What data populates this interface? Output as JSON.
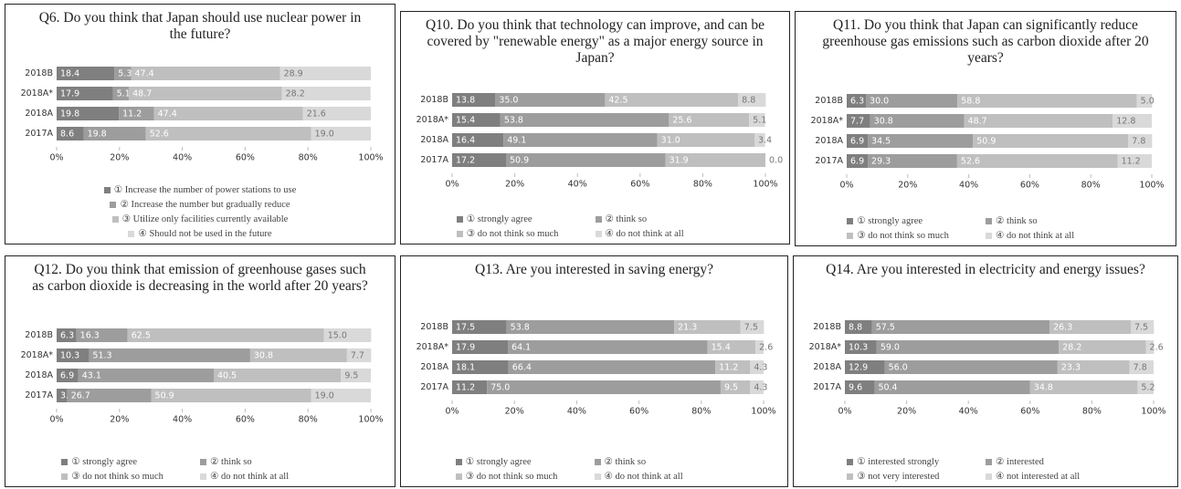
{
  "chart_data": [
    {
      "type": "bar",
      "orientation": "horizontal",
      "stacked": true,
      "title": "Q6.  Do you think that Japan should use nuclear power in the future?",
      "categories": [
        "2018B",
        "2018A*",
        "2018A",
        "2017A"
      ],
      "series": [
        {
          "name": "① Increase the number of power stations to use",
          "color": "#7f7f7f",
          "values": [
            18.4,
            17.9,
            19.8,
            8.6
          ],
          "value_labels": [
            "18.4",
            "17.9",
            "19.8",
            "8.6"
          ]
        },
        {
          "name": "② Increase the number but gradually reduce",
          "color": "#9d9d9d",
          "values": [
            5.3,
            5.1,
            11.2,
            19.8
          ],
          "value_labels": [
            "5.3",
            "5.1",
            "11.2",
            "19.8"
          ]
        },
        {
          "name": "③ Utilize only facilities currently available",
          "color": "#bfbfbf",
          "values": [
            47.4,
            48.7,
            47.4,
            52.6
          ],
          "value_labels": [
            "47.4",
            "48.7",
            "47.4",
            "52.6"
          ]
        },
        {
          "name": "④ Should not be used in the future",
          "color": "#d9d9d9",
          "values": [
            28.9,
            28.2,
            21.6,
            19.0
          ],
          "value_labels": [
            "28.9",
            "28.2",
            "21.6",
            "19.0"
          ]
        }
      ],
      "xlim": [
        0,
        100
      ],
      "xticks": [
        {
          "value": 0,
          "label": "0%"
        },
        {
          "value": 20,
          "label": "20%"
        },
        {
          "value": 40,
          "label": "40%"
        },
        {
          "value": 60,
          "label": "60%"
        },
        {
          "value": 80,
          "label": "80%"
        },
        {
          "value": 100,
          "label": "100%"
        }
      ]
    },
    {
      "type": "bar",
      "orientation": "horizontal",
      "stacked": true,
      "title": "Q10. Do you think that technology can improve, and can be covered by \"renewable energy\" as a major energy source in Japan?",
      "categories": [
        "2018B",
        "2018A*",
        "2018A",
        "2017A"
      ],
      "series": [
        {
          "name": "① strongly agree",
          "color": "#7f7f7f",
          "values": [
            13.8,
            15.4,
            16.4,
            17.2
          ],
          "value_labels": [
            "13.8",
            "15.4",
            "16.4",
            "17.2"
          ]
        },
        {
          "name": "② think so",
          "color": "#9d9d9d",
          "values": [
            35.0,
            53.8,
            49.1,
            50.9
          ],
          "value_labels": [
            "35.0",
            "53.8",
            "49.1",
            "50.9"
          ]
        },
        {
          "name": "③ do not think so much",
          "color": "#bfbfbf",
          "values": [
            42.5,
            25.6,
            31.0,
            31.9
          ],
          "value_labels": [
            "42.5",
            "25.6",
            "31.0",
            "31.9"
          ]
        },
        {
          "name": "④ do not think at all",
          "color": "#d9d9d9",
          "values": [
            8.8,
            5.1,
            3.4,
            0.0
          ],
          "value_labels": [
            "8.8",
            "5.1",
            "3.4",
            "0.0"
          ]
        }
      ],
      "xlim": [
        0,
        100
      ],
      "xticks": [
        {
          "value": 0,
          "label": "0%"
        },
        {
          "value": 20,
          "label": "20%"
        },
        {
          "value": 40,
          "label": "40%"
        },
        {
          "value": 60,
          "label": "60%"
        },
        {
          "value": 80,
          "label": "80%"
        },
        {
          "value": 100,
          "label": "100%"
        }
      ]
    },
    {
      "type": "bar",
      "orientation": "horizontal",
      "stacked": true,
      "title": "Q11. Do you think that Japan can significantly reduce greenhouse gas emissions such as carbon dioxide after 20 years?",
      "categories": [
        "2018B",
        "2018A*",
        "2018A",
        "2017A"
      ],
      "series": [
        {
          "name": "① strongly agree",
          "color": "#7f7f7f",
          "values": [
            6.3,
            7.7,
            6.9,
            6.9
          ],
          "value_labels": [
            "6.3",
            "7.7",
            "6.9",
            "6.9"
          ]
        },
        {
          "name": "② think so",
          "color": "#9d9d9d",
          "values": [
            30.0,
            30.8,
            34.5,
            29.3
          ],
          "value_labels": [
            "30.0",
            "30.8",
            "34.5",
            "29.3"
          ]
        },
        {
          "name": "③ do not think so much",
          "color": "#bfbfbf",
          "values": [
            58.8,
            48.7,
            50.9,
            52.6
          ],
          "value_labels": [
            "58.8",
            "48.7",
            "50.9",
            "52.6"
          ]
        },
        {
          "name": "④ do not think at all",
          "color": "#d9d9d9",
          "values": [
            5.0,
            12.8,
            7.8,
            11.2
          ],
          "value_labels": [
            "5.0",
            "12.8",
            "7.8",
            "11.2"
          ]
        }
      ],
      "xlim": [
        0,
        100
      ],
      "xticks": [
        {
          "value": 0,
          "label": "0%"
        },
        {
          "value": 20,
          "label": "20%"
        },
        {
          "value": 40,
          "label": "40%"
        },
        {
          "value": 60,
          "label": "60%"
        },
        {
          "value": 80,
          "label": "80%"
        },
        {
          "value": 100,
          "label": "100%"
        }
      ]
    },
    {
      "type": "bar",
      "orientation": "horizontal",
      "stacked": true,
      "title": "Q12. Do you think that emission of greenhouse gases such as carbon dioxide is decreasing in the world after 20 years?",
      "categories": [
        "2018B",
        "2018A*",
        "2018A",
        "2017A"
      ],
      "series": [
        {
          "name": "① strongly agree",
          "color": "#7f7f7f",
          "values": [
            6.3,
            10.3,
            6.9,
            3.4
          ],
          "value_labels": [
            "6.3",
            "10.3",
            "6.9",
            "3.4"
          ]
        },
        {
          "name": "② think so",
          "color": "#9d9d9d",
          "values": [
            16.3,
            51.3,
            43.1,
            26.7
          ],
          "value_labels": [
            "16.3",
            "51.3",
            "43.1",
            "26.7"
          ]
        },
        {
          "name": "③ do not think so much",
          "color": "#bfbfbf",
          "values": [
            62.5,
            30.8,
            40.5,
            50.9
          ],
          "value_labels": [
            "62.5",
            "30.8",
            "40.5",
            "50.9"
          ]
        },
        {
          "name": "④ do not think at all",
          "color": "#d9d9d9",
          "values": [
            15.0,
            7.7,
            9.5,
            19.0
          ],
          "value_labels": [
            "15.0",
            "7.7",
            "9.5",
            "19.0"
          ]
        }
      ],
      "xlim": [
        0,
        100
      ],
      "xticks": [
        {
          "value": 0,
          "label": "0%"
        },
        {
          "value": 20,
          "label": "20%"
        },
        {
          "value": 40,
          "label": "40%"
        },
        {
          "value": 60,
          "label": "60%"
        },
        {
          "value": 80,
          "label": "80%"
        },
        {
          "value": 100,
          "label": "100%"
        }
      ]
    },
    {
      "type": "bar",
      "orientation": "horizontal",
      "stacked": true,
      "title": "Q13. Are you interested in saving energy?",
      "categories": [
        "2018B",
        "2018A*",
        "2018A",
        "2017A"
      ],
      "series": [
        {
          "name": "① strongly agree",
          "color": "#7f7f7f",
          "values": [
            17.5,
            17.9,
            18.1,
            11.2
          ],
          "value_labels": [
            "17.5",
            "17.9",
            "18.1",
            "11.2"
          ]
        },
        {
          "name": "② think so",
          "color": "#9d9d9d",
          "values": [
            53.8,
            64.1,
            66.4,
            75.0
          ],
          "value_labels": [
            "53.8",
            "64.1",
            "66.4",
            "75.0"
          ]
        },
        {
          "name": "③ do not think so much",
          "color": "#bfbfbf",
          "values": [
            21.3,
            15.4,
            11.2,
            9.5
          ],
          "value_labels": [
            "21.3",
            "15.4",
            "11.2",
            "9.5"
          ]
        },
        {
          "name": "④ do not think at all",
          "color": "#d9d9d9",
          "values": [
            7.5,
            2.6,
            4.3,
            4.3
          ],
          "value_labels": [
            "7.5",
            "2.6",
            "4.3",
            "4.3"
          ]
        }
      ],
      "xlim": [
        0,
        100
      ],
      "xticks": [
        {
          "value": 0,
          "label": "0%"
        },
        {
          "value": 20,
          "label": "20%"
        },
        {
          "value": 40,
          "label": "40%"
        },
        {
          "value": 60,
          "label": "60%"
        },
        {
          "value": 80,
          "label": "80%"
        },
        {
          "value": 100,
          "label": "100%"
        }
      ]
    },
    {
      "type": "bar",
      "orientation": "horizontal",
      "stacked": true,
      "title": "Q14. Are you interested in electricity and energy issues?",
      "categories": [
        "2018B",
        "2018A*",
        "2018A",
        "2017A"
      ],
      "series": [
        {
          "name": "① interested strongly",
          "color": "#7f7f7f",
          "values": [
            8.8,
            10.3,
            12.9,
            9.6
          ],
          "value_labels": [
            "8.8",
            "10.3",
            "12.9",
            "9.6"
          ]
        },
        {
          "name": "② interested",
          "color": "#9d9d9d",
          "values": [
            57.5,
            59.0,
            56.0,
            50.4
          ],
          "value_labels": [
            "57.5",
            "59.0",
            "56.0",
            "50.4"
          ]
        },
        {
          "name": "③ not very interested",
          "color": "#bfbfbf",
          "values": [
            26.3,
            28.2,
            23.3,
            34.8
          ],
          "value_labels": [
            "26.3",
            "28.2",
            "23.3",
            "34.8"
          ]
        },
        {
          "name": "④ not interested at all",
          "color": "#d9d9d9",
          "values": [
            7.5,
            2.6,
            7.8,
            5.2
          ],
          "value_labels": [
            "7.5",
            "2.6",
            "7.8",
            "5.2"
          ]
        }
      ],
      "xlim": [
        0,
        100
      ],
      "xticks": [
        {
          "value": 0,
          "label": "0%"
        },
        {
          "value": 20,
          "label": "20%"
        },
        {
          "value": 40,
          "label": "40%"
        },
        {
          "value": 60,
          "label": "60%"
        },
        {
          "value": 80,
          "label": "80%"
        },
        {
          "value": 100,
          "label": "100%"
        }
      ]
    }
  ]
}
